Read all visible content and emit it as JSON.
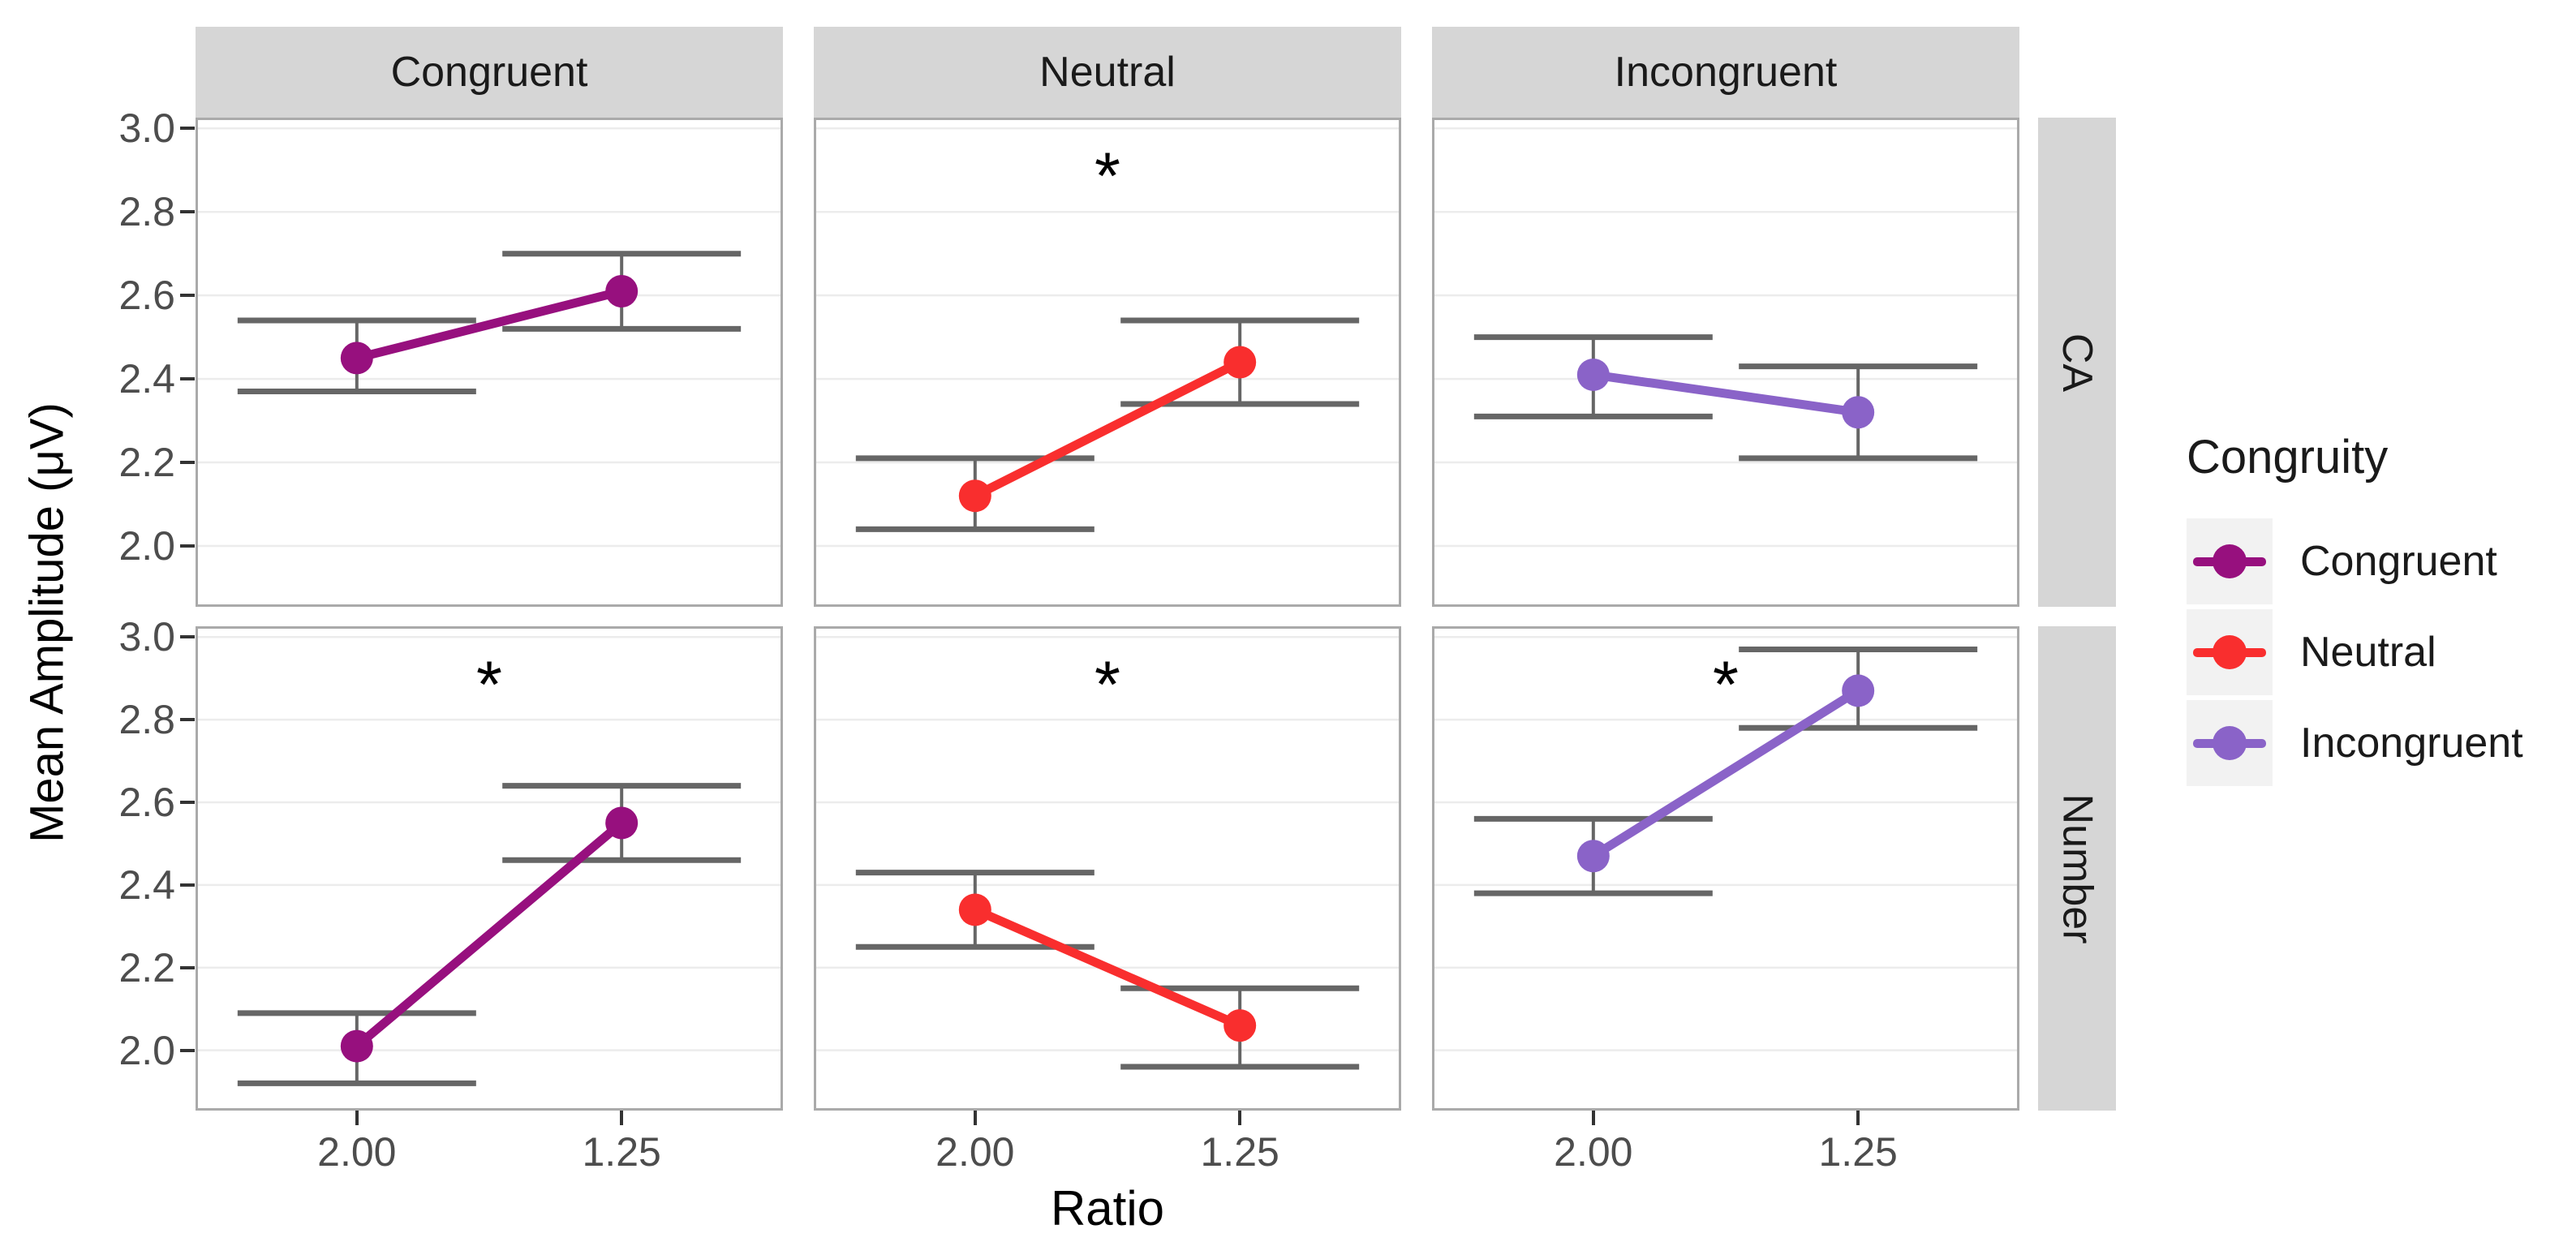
{
  "figure": {
    "y_axis_title": "Mean Amplitude (μV)",
    "x_axis_title": "Ratio"
  },
  "legend": {
    "title": "Congruity",
    "items": [
      {
        "label": "Congruent",
        "color": "#97107E"
      },
      {
        "label": "Neutral",
        "color": "#F92E2E"
      },
      {
        "label": "Incongruent",
        "color": "#8A63C8"
      }
    ]
  },
  "chart_data": {
    "type": "line",
    "title": "",
    "xlabel": "Ratio",
    "ylabel": "Mean Amplitude (μV)",
    "x_categories": [
      "2.00",
      "1.25"
    ],
    "ylim": [
      1.86,
      3.02
    ],
    "y_ticks": [
      3.0,
      2.8,
      2.6,
      2.4,
      2.2,
      2.0
    ],
    "grid": "major-horizontal-only",
    "legend_position": "right",
    "legend_title": "Congruity",
    "facet_cols": [
      "Congruent",
      "Neutral",
      "Incongruent"
    ],
    "facet_rows": [
      "CA",
      "Number"
    ],
    "error_bar_note": "horizontal caps at upper and lower limits, width 0.9 categories",
    "panels": [
      {
        "row": "CA",
        "col": "Congruent",
        "series": "Congruent",
        "color": "#97107E",
        "sig": "",
        "points": [
          {
            "x": "2.00",
            "mean": 2.45,
            "lower": 2.37,
            "upper": 2.54
          },
          {
            "x": "1.25",
            "mean": 2.61,
            "lower": 2.52,
            "upper": 2.7
          }
        ]
      },
      {
        "row": "CA",
        "col": "Neutral",
        "series": "Neutral",
        "color": "#F92E2E",
        "sig": "*",
        "points": [
          {
            "x": "2.00",
            "mean": 2.12,
            "lower": 2.04,
            "upper": 2.21
          },
          {
            "x": "1.25",
            "mean": 2.44,
            "lower": 2.34,
            "upper": 2.54
          }
        ]
      },
      {
        "row": "CA",
        "col": "Incongruent",
        "series": "Incongruent",
        "color": "#8A63C8",
        "sig": "",
        "points": [
          {
            "x": "2.00",
            "mean": 2.41,
            "lower": 2.31,
            "upper": 2.5
          },
          {
            "x": "1.25",
            "mean": 2.32,
            "lower": 2.21,
            "upper": 2.43
          }
        ]
      },
      {
        "row": "Number",
        "col": "Congruent",
        "series": "Congruent",
        "color": "#97107E",
        "sig": "*",
        "points": [
          {
            "x": "2.00",
            "mean": 2.01,
            "lower": 1.92,
            "upper": 2.09
          },
          {
            "x": "1.25",
            "mean": 2.55,
            "lower": 2.46,
            "upper": 2.64
          }
        ]
      },
      {
        "row": "Number",
        "col": "Neutral",
        "series": "Neutral",
        "color": "#F92E2E",
        "sig": "*",
        "points": [
          {
            "x": "2.00",
            "mean": 2.34,
            "lower": 2.25,
            "upper": 2.43
          },
          {
            "x": "1.25",
            "mean": 2.06,
            "lower": 1.96,
            "upper": 2.15
          }
        ]
      },
      {
        "row": "Number",
        "col": "Incongruent",
        "series": "Incongruent",
        "color": "#8A63C8",
        "sig": "*",
        "points": [
          {
            "x": "2.00",
            "mean": 2.47,
            "lower": 2.38,
            "upper": 2.56
          },
          {
            "x": "1.25",
            "mean": 2.87,
            "lower": 2.78,
            "upper": 2.97
          }
        ]
      }
    ]
  },
  "style": {
    "strip_bg": "#D6D6D6",
    "strip_text": "#1a1a1a",
    "panel_bg": "#FFFFFF",
    "panel_border": "#AAAAAA",
    "gridline": "#ECECEC",
    "error_bar": "#666666",
    "axis_text": "#4D4D4D",
    "tick_mark": "#333333",
    "legend_key_bg": "#F2F2F2"
  }
}
